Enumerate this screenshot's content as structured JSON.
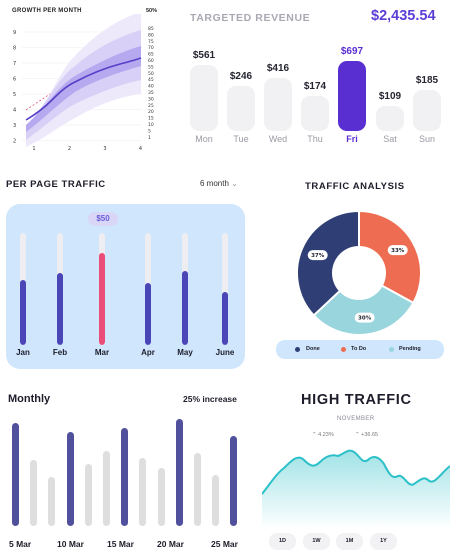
{
  "growth": {
    "title": "GROWTH PER MONTH",
    "percent_label": "50%",
    "y_ticks": [
      "9",
      "8",
      "7",
      "6",
      "5",
      "4",
      "3",
      "2"
    ],
    "y2_ticks": [
      "85",
      "80",
      "75",
      "70",
      "65",
      "60",
      "55",
      "50",
      "45",
      "40",
      "35",
      "30",
      "25",
      "20",
      "15",
      "10",
      "5",
      "1"
    ],
    "x_ticks": [
      "1",
      "2",
      "3",
      "4"
    ],
    "colors": {
      "line": "#5540c8",
      "band": "#8f7ee8",
      "dashed": "#e8506e"
    }
  },
  "revenue": {
    "title": "TARGETED REVENUE",
    "total": "$2,435.54",
    "days": [
      {
        "day": "Mon",
        "amount": "$561",
        "active": false
      },
      {
        "day": "Tue",
        "amount": "$246",
        "active": false
      },
      {
        "day": "Wed",
        "amount": "$416",
        "active": false
      },
      {
        "day": "Thu",
        "amount": "$174",
        "active": false
      },
      {
        "day": "Fri",
        "amount": "$697",
        "active": true
      },
      {
        "day": "Sat",
        "amount": "$109",
        "active": false
      },
      {
        "day": "Sun",
        "amount": "$185",
        "active": false
      }
    ],
    "colors": {
      "active": "#5a2fd1",
      "inactive": "#f1f1f3"
    }
  },
  "per_page_traffic": {
    "title": "PER PAGE TRAFFIC",
    "range_label": "6 month",
    "badge": "$50",
    "months": [
      {
        "label": "Jan",
        "level": 0.58,
        "highlight": false
      },
      {
        "label": "Feb",
        "level": 0.64,
        "highlight": false
      },
      {
        "label": "Mar",
        "level": 0.82,
        "highlight": true
      },
      {
        "label": "Apr",
        "level": 0.55,
        "highlight": false
      },
      {
        "label": "May",
        "level": 0.66,
        "highlight": false
      },
      {
        "label": "June",
        "level": 0.47,
        "highlight": false
      }
    ],
    "colors": {
      "panel": "#cfe6fc",
      "fill": "#4a46b8",
      "highlight": "#ea4d77"
    }
  },
  "traffic_analysis": {
    "title": "TRAFFIC ANALYSIS",
    "segments": [
      {
        "label": "Done",
        "percent_label": "37%",
        "value": 37,
        "color": "#2f3e74"
      },
      {
        "label": "To Do",
        "percent_label": "33%",
        "value": 33,
        "color": "#ee6d52"
      },
      {
        "label": "Pending",
        "percent_label": "30%",
        "value": 30,
        "color": "#99d5dd"
      }
    ]
  },
  "monthly": {
    "title": "Monthly",
    "increase_label": "25% increase",
    "date_labels": [
      "5 Mar",
      "10 Mar",
      "15 Mar",
      "20 Mar",
      "25 Mar"
    ],
    "bars": [
      {
        "level": 0.96,
        "dark": true
      },
      {
        "level": 0.62,
        "dark": false
      },
      {
        "level": 0.46,
        "dark": false
      },
      {
        "level": 0.88,
        "dark": true
      },
      {
        "level": 0.58,
        "dark": false
      },
      {
        "level": 0.7,
        "dark": false
      },
      {
        "level": 0.92,
        "dark": true
      },
      {
        "level": 0.64,
        "dark": false
      },
      {
        "level": 0.54,
        "dark": false
      },
      {
        "level": 1.0,
        "dark": true
      },
      {
        "level": 0.68,
        "dark": false
      },
      {
        "level": 0.48,
        "dark": false
      },
      {
        "level": 0.84,
        "dark": true
      }
    ],
    "colors": {
      "dark": "#51509c",
      "light": "#dedede"
    }
  },
  "high_traffic": {
    "title": "HIGH TRAFFIC",
    "subtitle": "NOVEMBER",
    "stats": [
      {
        "icon": "chevron-up-icon",
        "text": "4.23%"
      },
      {
        "icon": "chevron-up-icon",
        "text": "+36.65"
      }
    ],
    "ranges": [
      "1D",
      "1W",
      "1M",
      "1Y"
    ],
    "colors": {
      "line": "#2cc0c8",
      "fill": "#bfe8ec"
    }
  }
}
